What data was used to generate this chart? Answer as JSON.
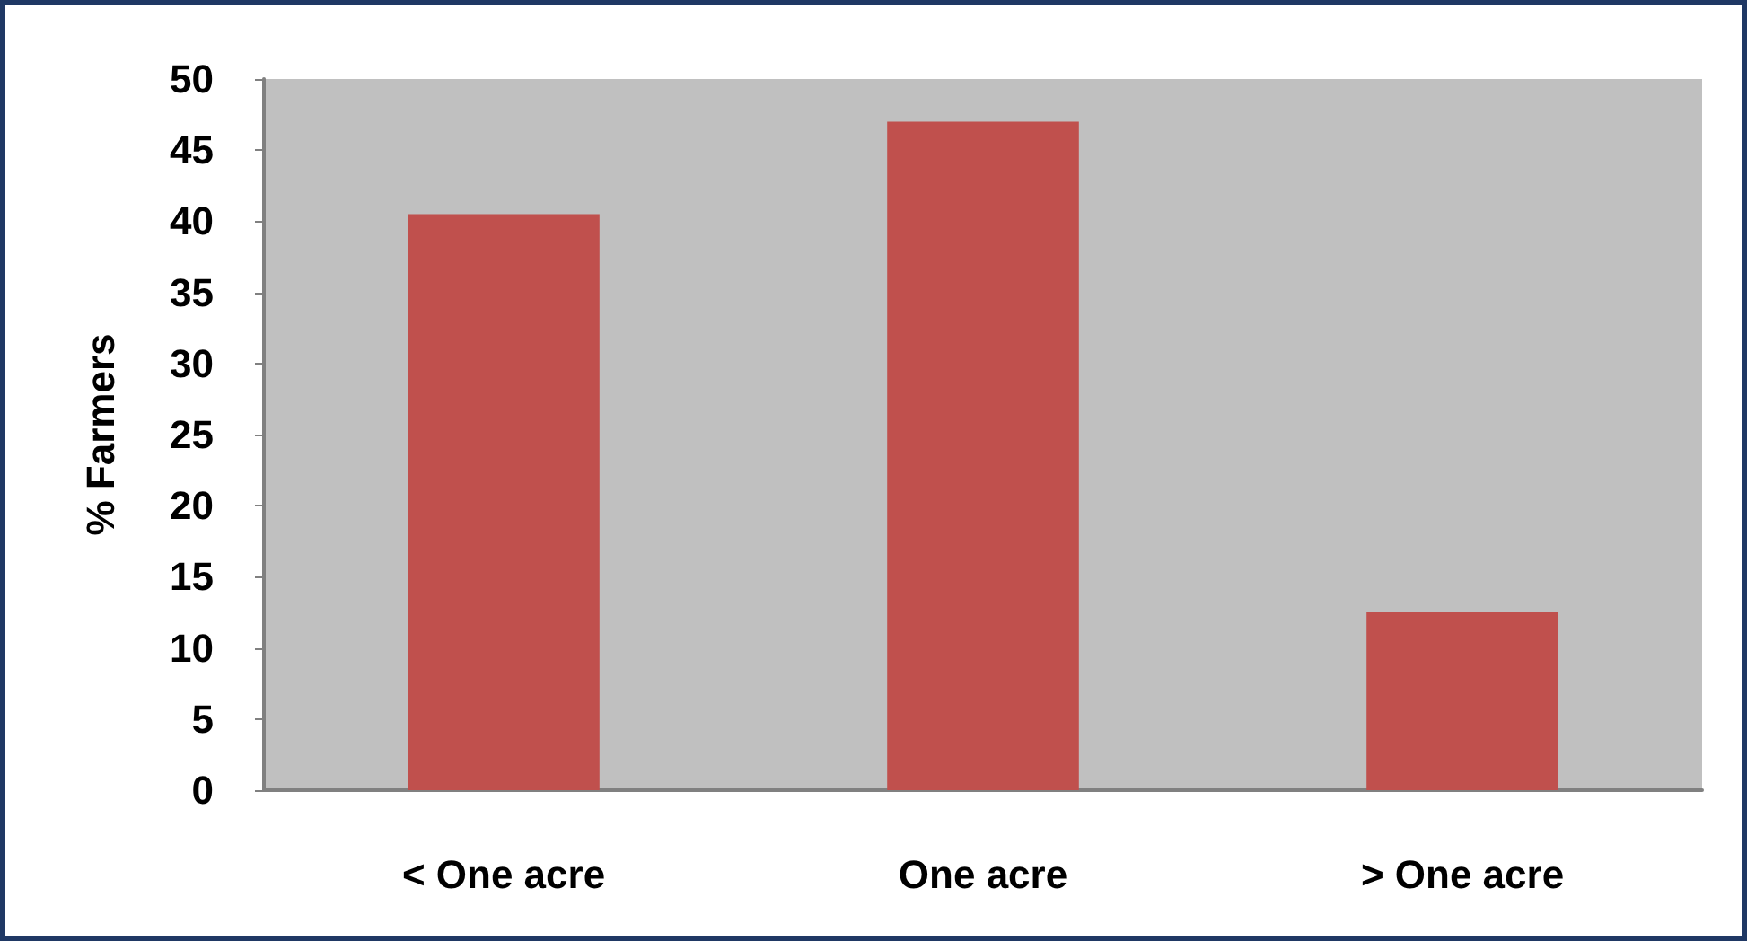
{
  "chart_data": {
    "type": "bar",
    "ylabel": "% Farmers",
    "categories": [
      "< One acre",
      "One acre",
      "> One acre"
    ],
    "values": [
      40.5,
      47,
      12.5
    ],
    "color": "#c0504d",
    "ylim": [
      0,
      50
    ],
    "yticks": [
      0,
      5,
      10,
      15,
      20,
      25,
      30,
      35,
      40,
      45,
      50
    ],
    "grid": false
  }
}
